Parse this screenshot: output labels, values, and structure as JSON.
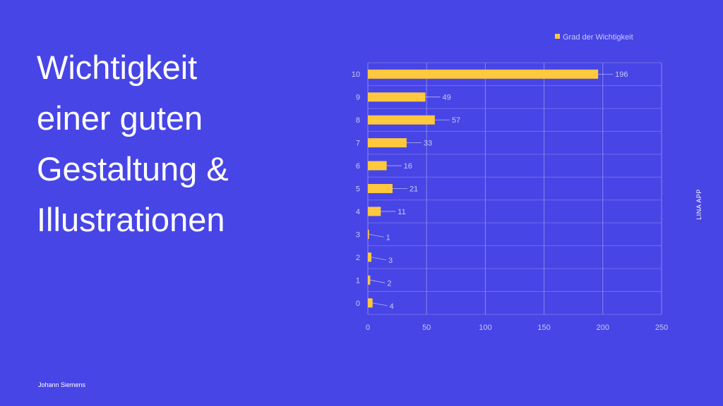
{
  "slide": {
    "title_lines": [
      "Wichtigkeit",
      "einer guten",
      "Gestaltung &",
      "Illustrationen"
    ],
    "side_label": "LINA APP",
    "author": "Johann Siemens"
  },
  "colors": {
    "background": "#4845E6",
    "bar": "#FFC83D",
    "text": "#FFFFFF",
    "axis_text": "#C9C8F6",
    "grid": "#8E8CF0"
  },
  "chart_data": {
    "type": "bar",
    "orientation": "horizontal",
    "categories": [
      "10",
      "9",
      "8",
      "7",
      "6",
      "5",
      "4",
      "3",
      "2",
      "1",
      "0"
    ],
    "series": [
      {
        "name": "Grad der Wichtigkeit",
        "values": [
          196,
          49,
          57,
          33,
          16,
          21,
          11,
          1,
          3,
          2,
          4
        ]
      }
    ],
    "xlim": [
      0,
      250
    ],
    "xticks": [
      0,
      50,
      100,
      150,
      200,
      250
    ],
    "grid": true,
    "legend_position": "top-right",
    "data_labels": true
  }
}
